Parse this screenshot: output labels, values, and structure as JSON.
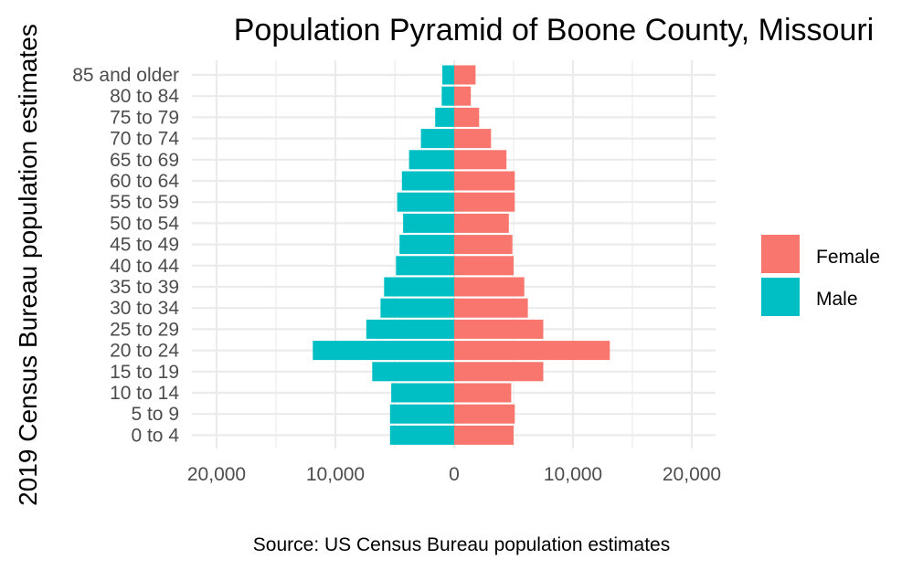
{
  "chart_data": {
    "type": "bar",
    "orientation": "horizontal",
    "layout": "population-pyramid",
    "title": "Population Pyramid of Boone County, Missouri",
    "ylabel": "2019 Census Bureau population estimates",
    "xlabel": "",
    "caption": "Source: US Census Bureau population estimates",
    "categories": [
      "0 to 4",
      "5 to 9",
      "10 to 14",
      "15 to 19",
      "20 to 24",
      "25 to 29",
      "30 to 34",
      "35 to 39",
      "40 to 44",
      "45 to 49",
      "50 to 54",
      "55 to 59",
      "60 to 64",
      "65 to 69",
      "70 to 74",
      "75 to 79",
      "80 to 84",
      "85 and older"
    ],
    "series": [
      {
        "name": "Female",
        "color": "#F8766D",
        "values": [
          5000,
          5100,
          4800,
          7500,
          13100,
          7500,
          6200,
          5900,
          5000,
          4900,
          4600,
          5100,
          5100,
          4400,
          3100,
          2100,
          1400,
          1800
        ]
      },
      {
        "name": "Male",
        "color": "#00BFC4",
        "values": [
          -5400,
          -5400,
          -5300,
          -6900,
          -11900,
          -7400,
          -6200,
          -5900,
          -4900,
          -4600,
          -4300,
          -4800,
          -4400,
          -3800,
          -2800,
          -1600,
          -1050,
          -1000
        ]
      }
    ],
    "xticks": [
      -20000,
      -10000,
      0,
      10000,
      20000
    ],
    "xtick_labels": [
      "20,000",
      "10,000",
      "0",
      "10,000",
      "20,000"
    ],
    "xlim": [
      -22000,
      22000
    ],
    "grid": true,
    "legend_position": "right"
  }
}
